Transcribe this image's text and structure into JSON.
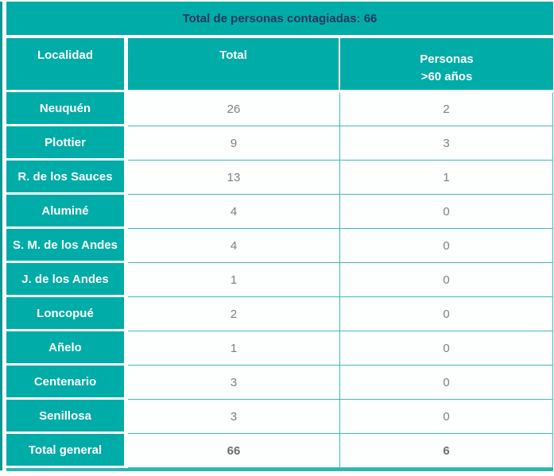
{
  "title": {
    "label": "Total de personas contagiadas: 66"
  },
  "table": {
    "columns": {
      "locality": "Localidad",
      "total": "Total",
      "over60_line1": "Personas",
      "over60_line2": ">60 años"
    },
    "rows": [
      {
        "locality": "Neuquén",
        "total": "26",
        "over60": "2",
        "bold": false
      },
      {
        "locality": "Plottier",
        "total": "9",
        "over60": "3",
        "bold": false
      },
      {
        "locality": "R. de los Sauces",
        "total": "13",
        "over60": "1",
        "bold": false
      },
      {
        "locality": "Aluminé",
        "total": "4",
        "over60": "0",
        "bold": false
      },
      {
        "locality": "S. M. de los Andes",
        "total": "4",
        "over60": "0",
        "bold": false
      },
      {
        "locality": "J. de los Andes",
        "total": "1",
        "over60": "0",
        "bold": false
      },
      {
        "locality": "Loncopué",
        "total": "2",
        "over60": "0",
        "bold": false
      },
      {
        "locality": "Añelo",
        "total": "1",
        "over60": "0",
        "bold": false
      },
      {
        "locality": "Centenario",
        "total": "3",
        "over60": "0",
        "bold": false
      },
      {
        "locality": "Senillosa",
        "total": "3",
        "over60": "0",
        "bold": false
      },
      {
        "locality": "Total general",
        "total": "66",
        "over60": "6",
        "bold": true
      }
    ]
  },
  "colors": {
    "teal": "#00aca7",
    "teal_dark_edge": "#0a9792",
    "grid_teal": "#3fbcb7",
    "title_navy": "#1f3864",
    "value_gray": "#7f7f7f",
    "header_text": "#ffffff"
  },
  "chart_data": {
    "type": "table",
    "title": "Total de personas contagiadas: 66",
    "columns": [
      "Localidad",
      "Total",
      "Personas >60 años"
    ],
    "rows": [
      [
        "Neuquén",
        26,
        2
      ],
      [
        "Plottier",
        9,
        3
      ],
      [
        "R. de los Sauces",
        13,
        1
      ],
      [
        "Aluminé",
        4,
        0
      ],
      [
        "S. M. de los Andes",
        4,
        0
      ],
      [
        "J. de los Andes",
        1,
        0
      ],
      [
        "Loncopué",
        2,
        0
      ],
      [
        "Añelo",
        1,
        0
      ],
      [
        "Centenario",
        3,
        0
      ],
      [
        "Senillosa",
        3,
        0
      ],
      [
        "Total general",
        66,
        6
      ]
    ],
    "total_contagiados": 66,
    "total_mayores_60": 6
  }
}
